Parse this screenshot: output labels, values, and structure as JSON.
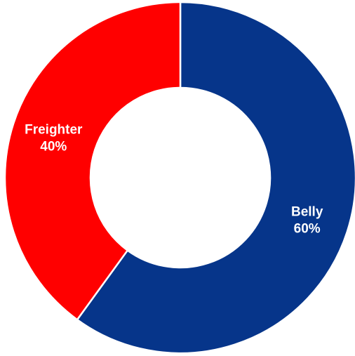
{
  "chart_data": {
    "type": "pie",
    "subtype": "donut",
    "slices": [
      {
        "label": "Belly",
        "value": 60,
        "display": "60%",
        "color": "#06358A"
      },
      {
        "label": "Freighter",
        "value": 40,
        "display": "40%",
        "color": "#FF0000"
      }
    ],
    "start": "12 o'clock",
    "direction": "clockwise",
    "legend": "none",
    "labels": "on slices"
  }
}
